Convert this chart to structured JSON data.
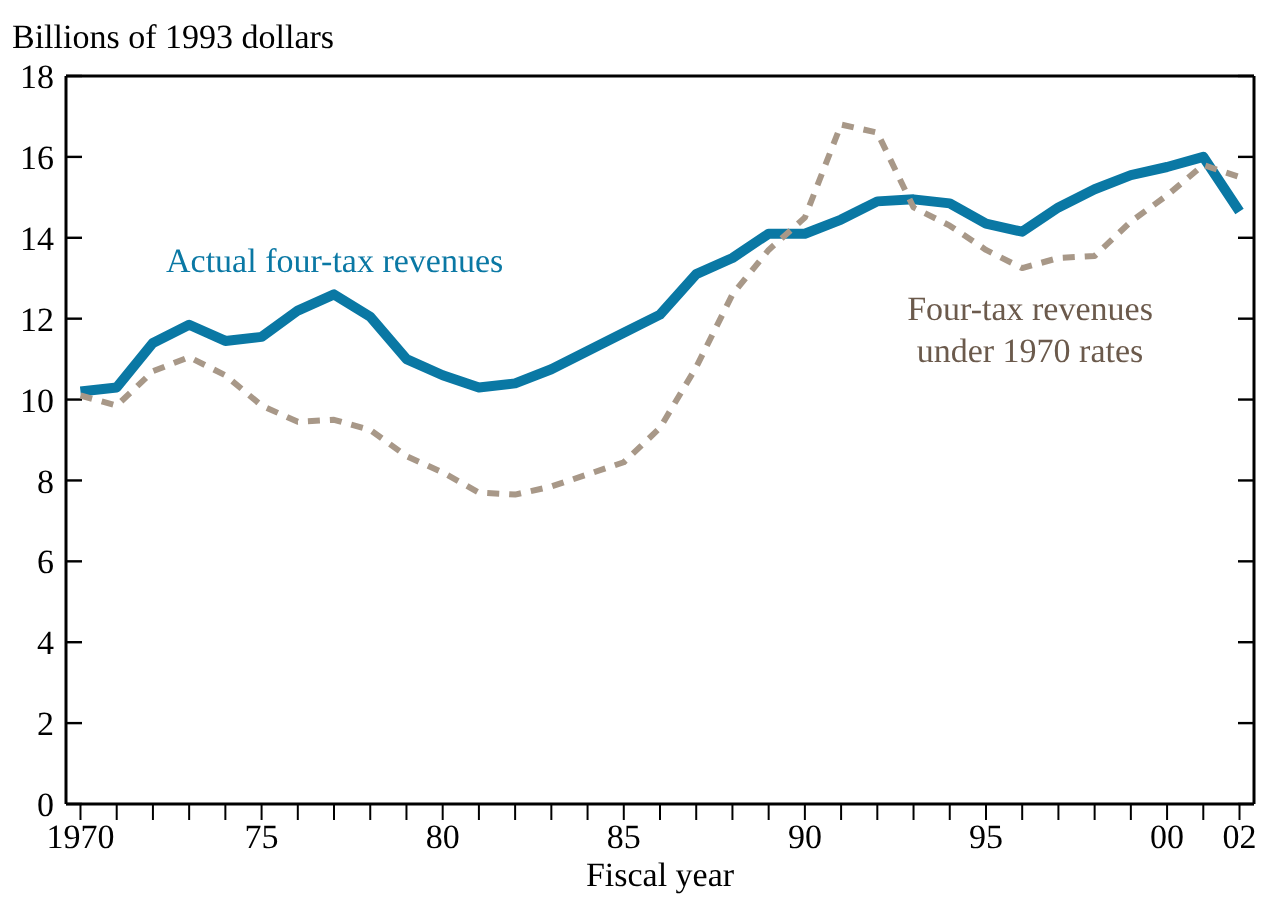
{
  "chart_data": {
    "type": "line",
    "ylabel": "Billions of 1993 dollars",
    "xlabel": "Fiscal year",
    "x": [
      1970,
      1971,
      1972,
      1973,
      1974,
      1975,
      1976,
      1977,
      1978,
      1979,
      1980,
      1981,
      1982,
      1983,
      1984,
      1985,
      1986,
      1987,
      1988,
      1989,
      1990,
      1991,
      1992,
      1993,
      1994,
      1995,
      1996,
      1997,
      1998,
      1999,
      2000,
      2001,
      2002
    ],
    "series": [
      {
        "name": "Actual four-tax revenues",
        "color": "#0a78a4",
        "line_style": "solid",
        "values": [
          10.2,
          10.3,
          11.4,
          11.85,
          11.45,
          11.55,
          12.2,
          12.6,
          12.05,
          11.0,
          10.6,
          10.3,
          10.4,
          10.75,
          11.2,
          11.65,
          12.1,
          13.1,
          13.5,
          14.1,
          14.1,
          14.45,
          14.9,
          14.95,
          14.85,
          14.35,
          14.15,
          14.75,
          15.2,
          15.55,
          15.75,
          16.0,
          14.65
        ]
      },
      {
        "name": "Four-tax revenues under 1970 rates",
        "color": "#a89888",
        "line_style": "dashed",
        "values": [
          10.1,
          9.85,
          10.7,
          11.05,
          10.6,
          9.85,
          9.45,
          9.5,
          9.25,
          8.6,
          8.2,
          7.7,
          7.65,
          7.85,
          8.15,
          8.45,
          9.3,
          10.8,
          12.6,
          13.7,
          14.5,
          16.8,
          16.6,
          14.75,
          14.3,
          13.7,
          13.25,
          13.5,
          13.55,
          14.4,
          15.05,
          15.8,
          15.5
        ]
      }
    ],
    "xlim": [
      1969.6,
      2002.4
    ],
    "xticks": [
      {
        "value": 1970,
        "label": "1970"
      },
      {
        "value": 1971,
        "label": null
      },
      {
        "value": 1972,
        "label": null
      },
      {
        "value": 1973,
        "label": null
      },
      {
        "value": 1974,
        "label": null
      },
      {
        "value": 1975,
        "label": "75"
      },
      {
        "value": 1976,
        "label": null
      },
      {
        "value": 1977,
        "label": null
      },
      {
        "value": 1978,
        "label": null
      },
      {
        "value": 1979,
        "label": null
      },
      {
        "value": 1980,
        "label": "80"
      },
      {
        "value": 1981,
        "label": null
      },
      {
        "value": 1982,
        "label": null
      },
      {
        "value": 1983,
        "label": null
      },
      {
        "value": 1984,
        "label": null
      },
      {
        "value": 1985,
        "label": "85"
      },
      {
        "value": 1986,
        "label": null
      },
      {
        "value": 1987,
        "label": null
      },
      {
        "value": 1988,
        "label": null
      },
      {
        "value": 1989,
        "label": null
      },
      {
        "value": 1990,
        "label": "90"
      },
      {
        "value": 1991,
        "label": null
      },
      {
        "value": 1992,
        "label": null
      },
      {
        "value": 1993,
        "label": null
      },
      {
        "value": 1994,
        "label": null
      },
      {
        "value": 1995,
        "label": "95"
      },
      {
        "value": 1996,
        "label": null
      },
      {
        "value": 1997,
        "label": null
      },
      {
        "value": 1998,
        "label": null
      },
      {
        "value": 1999,
        "label": null
      },
      {
        "value": 2000,
        "label": "00"
      },
      {
        "value": 2001,
        "label": null
      },
      {
        "value": 2002,
        "label": "02"
      }
    ],
    "ylim": [
      0,
      18
    ],
    "yticks": [
      0,
      2,
      4,
      6,
      8,
      10,
      12,
      14,
      16,
      18
    ],
    "grid": false,
    "legend": false,
    "marker": "none"
  }
}
